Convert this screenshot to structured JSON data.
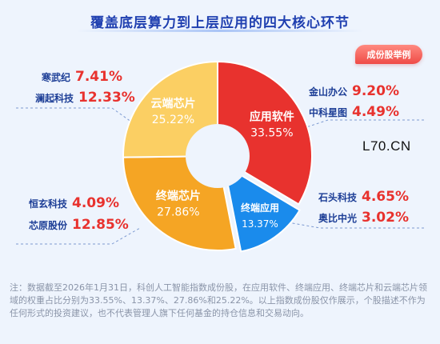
{
  "header": {
    "title": "覆盖底层算力到上层应用的四大核心环节",
    "badge": "成份股举例"
  },
  "watermark": "L70.CN",
  "chart_data": {
    "type": "pie",
    "categories": [
      "应用软件",
      "终端应用",
      "终端芯片",
      "云端芯片"
    ],
    "values": [
      33.55,
      13.37,
      27.86,
      25.22
    ],
    "value_labels": [
      "33.55%",
      "13.37%",
      "27.86%",
      "25.22%"
    ],
    "colors": [
      "#e8322e",
      "#1a8bec",
      "#f5a524",
      "#fbcf63"
    ],
    "donut": true
  },
  "companies": {
    "cloud_chip": [
      {
        "name": "寒武纪",
        "pct": "7.41%"
      },
      {
        "name": "澜起科技",
        "pct": "12.33%"
      }
    ],
    "app_software": [
      {
        "name": "金山办公",
        "pct": "9.20%"
      },
      {
        "name": "中科星图",
        "pct": "4.49%"
      }
    ],
    "terminal_chip": [
      {
        "name": "恒玄科技",
        "pct": "4.09%"
      },
      {
        "name": "芯原股份",
        "pct": "12.85%"
      }
    ],
    "terminal_app": [
      {
        "name": "石头科技",
        "pct": "4.65%"
      },
      {
        "name": "奥比中光",
        "pct": "3.02%"
      }
    ]
  },
  "note": "注：数据截至2026年1月31日，科创人工智能指数成份股，在应用软件、终端应用、终端芯片和云端芯片领域的权重占比分别为33.55%、13.37%、27.86%和25.22%。以上指数成份股仅作展示，个股描述不作为任何形式的投资建议，也不代表管理人旗下任何基金的持仓信息和交易动向。"
}
